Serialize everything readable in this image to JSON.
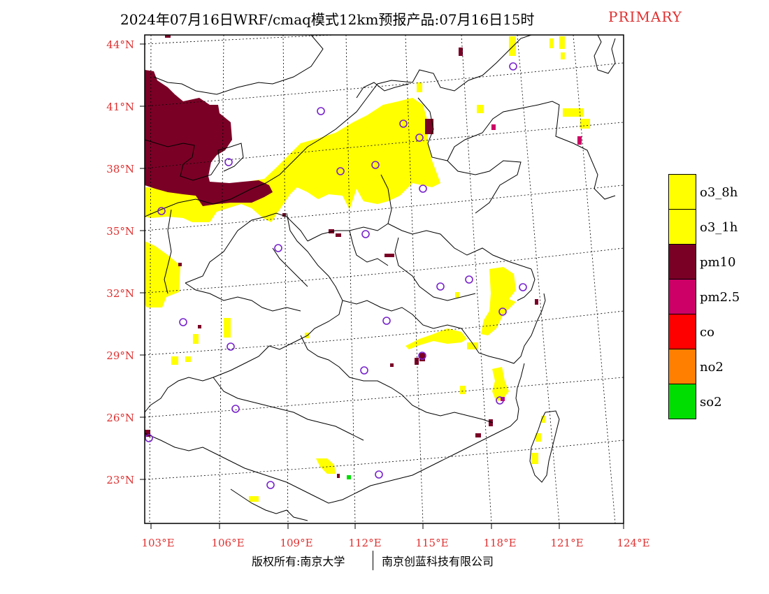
{
  "title": "2024年07月16日WRF/cmaq模式12km预报产品:07月16日15时",
  "primary_label": "PRIMARY",
  "lat_labels": [
    "44°N",
    "41°N",
    "38°N",
    "35°N",
    "32°N",
    "29°N",
    "26°N",
    "23°N"
  ],
  "lon_labels": [
    "103°E",
    "106°E",
    "109°E",
    "112°E",
    "115°E",
    "118°E",
    "121°E",
    "124°E"
  ],
  "legend": [
    {
      "label": "o3_8h",
      "color": "#ffff00"
    },
    {
      "label": "o3_1h",
      "color": "#ffff00"
    },
    {
      "label": "pm10",
      "color": "#7a0026"
    },
    {
      "label": "pm2.5",
      "color": "#cc0066"
    },
    {
      "label": "co",
      "color": "#ff0000"
    },
    {
      "label": "no2",
      "color": "#ff7f00"
    },
    {
      "label": "so2",
      "color": "#00dd00"
    }
  ],
  "footer": {
    "copyright": "版权所有:南京大学",
    "company": "南京创蓝科技有限公司"
  },
  "colors": {
    "label_red": "#e03030",
    "station_circle": "#7722cc",
    "pm10": "#7a0026",
    "o3": "#ffff00",
    "so2": "#00dd00"
  }
}
